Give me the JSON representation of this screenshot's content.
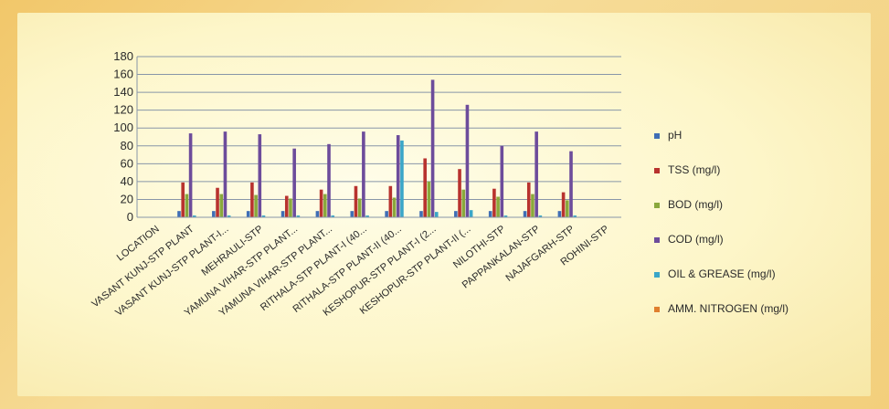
{
  "chart_data": {
    "type": "bar",
    "title": "",
    "xlabel": "",
    "ylabel": "",
    "ylim": [
      0,
      180
    ],
    "yticks": [
      0,
      20,
      40,
      60,
      80,
      100,
      120,
      140,
      160,
      180
    ],
    "grid": true,
    "legend_position": "right",
    "categories": [
      "LOCATION",
      "VASANT KUNJ-STP PLANT",
      "VASANT KUNJ-STP PLANT-I...",
      "MEHRAULI-STP",
      "YAMUNA VIHAR-STP PLANT...",
      "YAMUNA VIHAR-STP PLANT...",
      "RITHALA-STP PLANT-I (40...",
      "RITHALA-STP PLANT-II (40...",
      "KESHOPUR-STP PLANT-I (2...",
      "KESHOPUR-STP PLANT-II (...",
      "NILOTHI-STP",
      "PAPPANKALAN-STP",
      "NAJAFGARH-STP",
      "ROHINI-STP"
    ],
    "series": [
      {
        "name": "pH",
        "color": "#3f6eb5",
        "values": [
          0,
          7,
          7,
          7,
          7,
          7,
          7,
          7,
          7,
          7,
          7,
          7,
          7,
          0
        ]
      },
      {
        "name": "TSS (mg/l)",
        "color": "#b8322e",
        "values": [
          0,
          39,
          33,
          39,
          24,
          31,
          35,
          35,
          66,
          54,
          32,
          39,
          28,
          0
        ]
      },
      {
        "name": "BOD (mg/l)",
        "color": "#8aa83c",
        "values": [
          0,
          26,
          26,
          25,
          21,
          26,
          21,
          22,
          40,
          31,
          23,
          26,
          19,
          0
        ]
      },
      {
        "name": "COD (mg/l)",
        "color": "#6d4c9b",
        "values": [
          0,
          94,
          96,
          93,
          77,
          82,
          96,
          92,
          154,
          126,
          80,
          96,
          74,
          0
        ]
      },
      {
        "name": "OIL & GREASE (mg/l)",
        "color": "#3aa6c8",
        "values": [
          0,
          2,
          2,
          2,
          2,
          2,
          2,
          86,
          6,
          8,
          2,
          2,
          2,
          0
        ]
      },
      {
        "name": "AMM. NITROGEN (mg/l)",
        "color": "#e07f2e",
        "values": [
          0,
          0,
          0,
          0,
          0,
          0,
          0,
          0,
          0,
          0,
          0,
          0,
          0,
          0
        ]
      }
    ]
  }
}
